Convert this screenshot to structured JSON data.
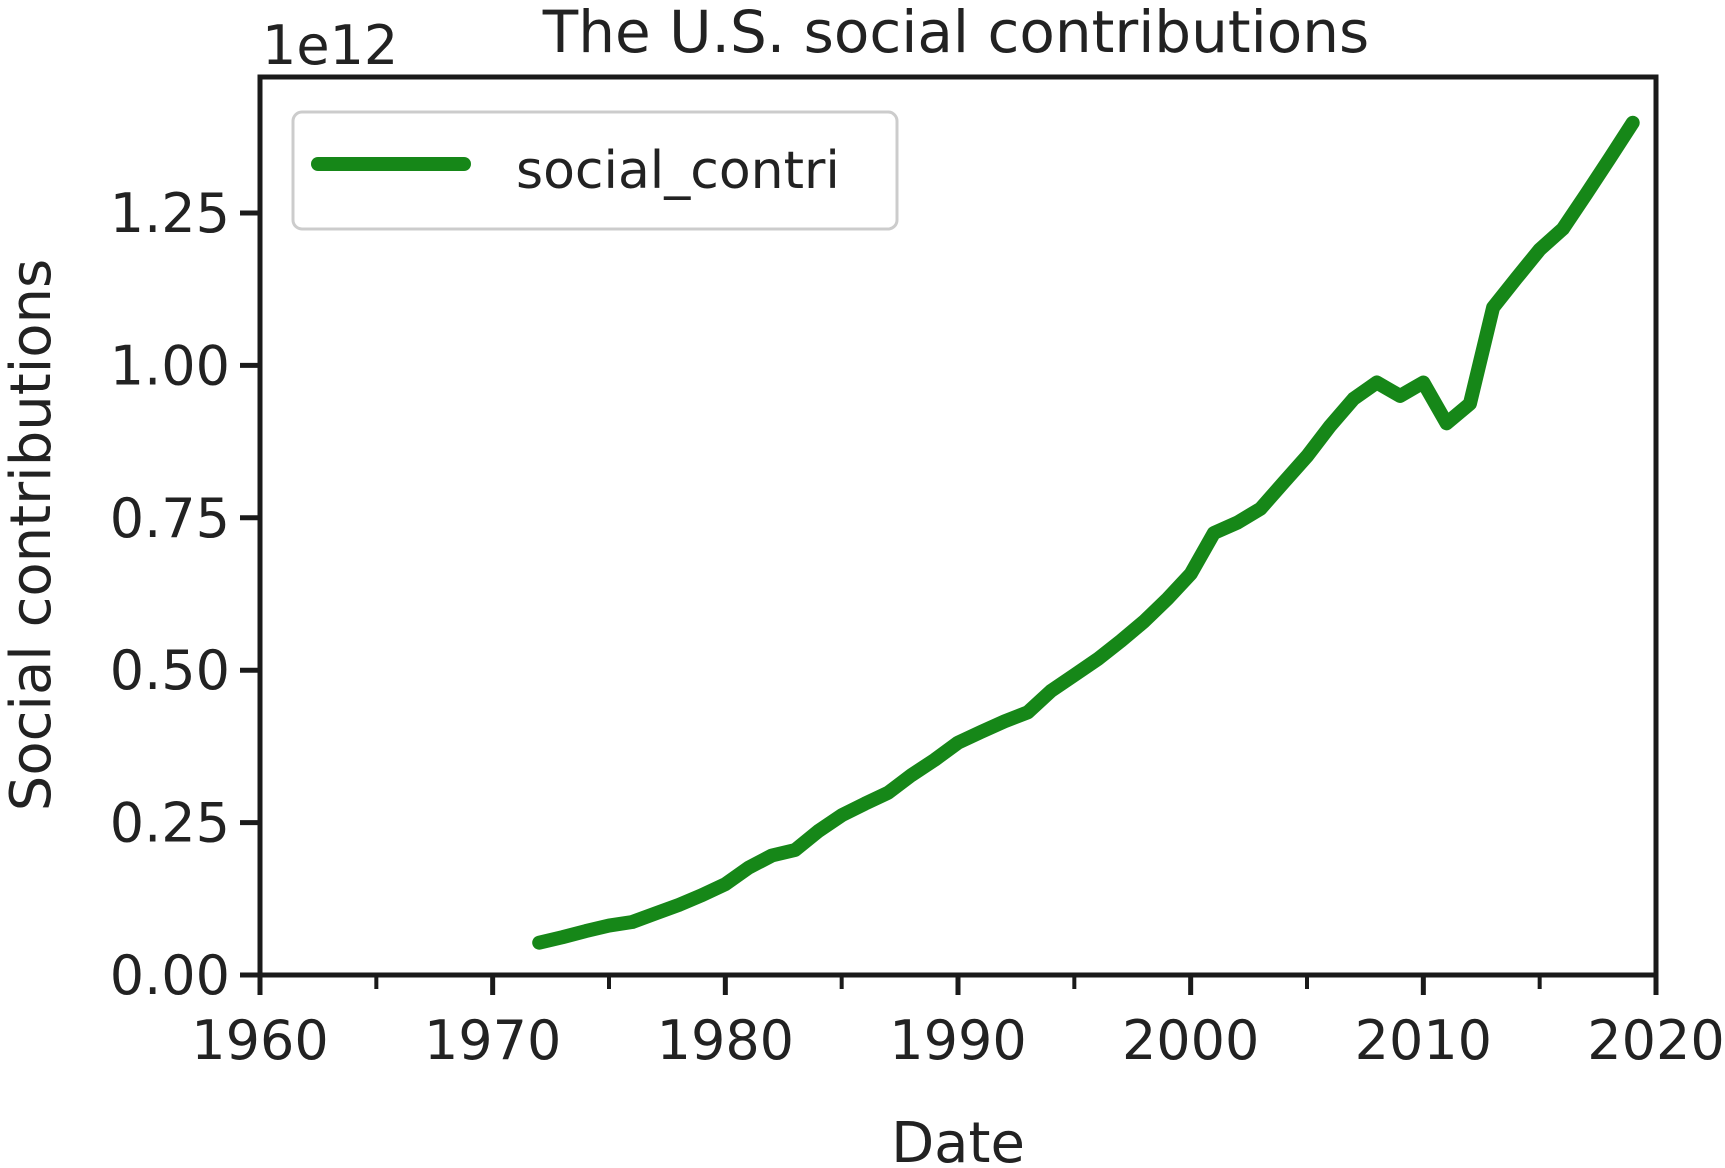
{
  "chart_data": {
    "type": "line",
    "title": "The U.S. social contributions",
    "xlabel": "Date",
    "ylabel": "Social contributions",
    "y_offset_label": "1e12",
    "x_scale_type": "date (years)",
    "xlim": [
      1960,
      2020
    ],
    "ylim": [
      0.0,
      1.4
    ],
    "x_ticks": [
      1960,
      1970,
      1980,
      1990,
      2000,
      2010,
      2020
    ],
    "x_minor_ticks": [
      1965,
      1975,
      1985,
      1995,
      2005,
      2015
    ],
    "y_ticks": [
      0.0,
      0.25,
      0.5,
      0.75,
      1.0,
      1.25
    ],
    "y_tick_labels": [
      "0.00",
      "0.25",
      "0.50",
      "0.75",
      "1.00",
      "1.25"
    ],
    "x_tick_labels": [
      "1960",
      "1970",
      "1980",
      "1990",
      "2000",
      "2010",
      "2020"
    ],
    "grid": false,
    "legend_position": "top-left",
    "series": [
      {
        "name": "social_contri",
        "color": "#168718",
        "x": [
          1972,
          1973,
          1974,
          1975,
          1976,
          1977,
          1978,
          1979,
          1980,
          1981,
          1982,
          1983,
          1984,
          1985,
          1986,
          1987,
          1988,
          1989,
          1990,
          1991,
          1992,
          1993,
          1994,
          1995,
          1996,
          1997,
          1998,
          1999,
          2000,
          2001,
          2002,
          2003,
          2004,
          2005,
          2006,
          2007,
          2008,
          2009,
          2010,
          2011,
          2012,
          2013,
          2014,
          2015,
          2016,
          2017,
          2018,
          2019
        ],
        "y": [
          0.053,
          0.062,
          0.072,
          0.081,
          0.087,
          0.101,
          0.115,
          0.131,
          0.149,
          0.176,
          0.196,
          0.205,
          0.236,
          0.262,
          0.281,
          0.299,
          0.328,
          0.353,
          0.381,
          0.399,
          0.416,
          0.431,
          0.466,
          0.492,
          0.518,
          0.548,
          0.58,
          0.617,
          0.658,
          0.725,
          0.742,
          0.765,
          0.808,
          0.851,
          0.901,
          0.945,
          0.972,
          0.95,
          0.972,
          0.905,
          0.937,
          1.095,
          1.143,
          1.19,
          1.224,
          1.281,
          1.339,
          1.398
        ]
      }
    ]
  }
}
